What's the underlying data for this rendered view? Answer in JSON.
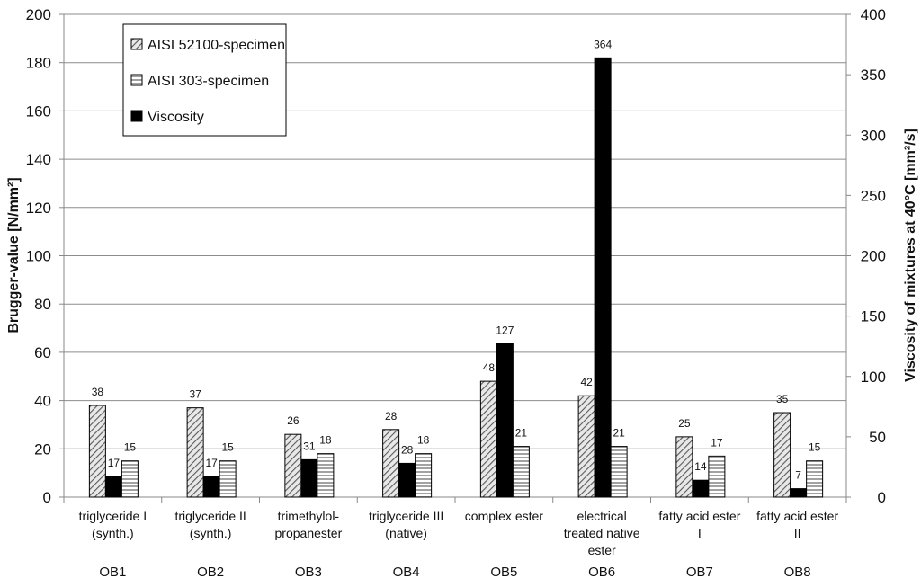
{
  "chart_data": {
    "type": "bar",
    "categories": [
      {
        "name": [
          "triglyceride I",
          "(synth.)"
        ],
        "code": "OB1"
      },
      {
        "name": [
          "triglyceride II",
          "(synth.)"
        ],
        "code": "OB2"
      },
      {
        "name": [
          "trimethylol-",
          "propanester"
        ],
        "code": "OB3"
      },
      {
        "name": [
          "triglyceride III",
          "(native)"
        ],
        "code": "OB4"
      },
      {
        "name": [
          "complex ester"
        ],
        "code": "OB5"
      },
      {
        "name": [
          "electrical",
          "treated native",
          "ester"
        ],
        "code": "OB6"
      },
      {
        "name": [
          "fatty acid ester",
          "I"
        ],
        "code": "OB7"
      },
      {
        "name": [
          "fatty acid ester",
          "II"
        ],
        "code": "OB8"
      }
    ],
    "series": [
      {
        "name": "AISI 52100-specimen",
        "axis": "left",
        "pattern": "diagonal",
        "values": [
          38,
          37,
          26,
          28,
          48,
          42,
          25,
          35
        ],
        "labels": [
          "38",
          "37",
          "26",
          "28",
          "48",
          "42",
          "25",
          "35"
        ]
      },
      {
        "name": "Viscosity",
        "axis": "right",
        "pattern": "solid",
        "values": [
          17,
          17,
          31,
          28,
          127,
          364,
          14,
          7
        ],
        "labels": [
          "17",
          "17",
          "31",
          "28",
          "127",
          "364",
          "14",
          "7"
        ]
      },
      {
        "name": "AISI 303-specimen",
        "axis": "left",
        "pattern": "horizontal",
        "values": [
          15,
          15,
          18,
          18,
          21,
          21,
          17,
          15
        ],
        "labels": [
          "15",
          "15",
          "18",
          "18",
          "21",
          "21",
          "17",
          "15"
        ]
      }
    ],
    "legend_order": [
      "AISI 52100-specimen",
      "AISI 303-specimen",
      "Viscosity"
    ],
    "ylabel": "Brugger-value [N/mm²]",
    "y2label": "Viscosity of mixtures at 40°C [mm²/s]",
    "ylim": [
      0,
      200
    ],
    "y2lim": [
      0,
      400
    ],
    "yticks": [
      "0",
      "20",
      "40",
      "60",
      "80",
      "100",
      "120",
      "140",
      "160",
      "180",
      "200"
    ],
    "y2ticks": [
      "0",
      "50",
      "100",
      "150",
      "200",
      "250",
      "300",
      "350",
      "400"
    ],
    "grid": true,
    "legend_position": "top-left",
    "colors": {
      "bar_fill": "#ffffff",
      "viscosity": "#000000",
      "hatch": "#555555",
      "grid": "#8c8c8c",
      "axis": "#888888"
    }
  }
}
